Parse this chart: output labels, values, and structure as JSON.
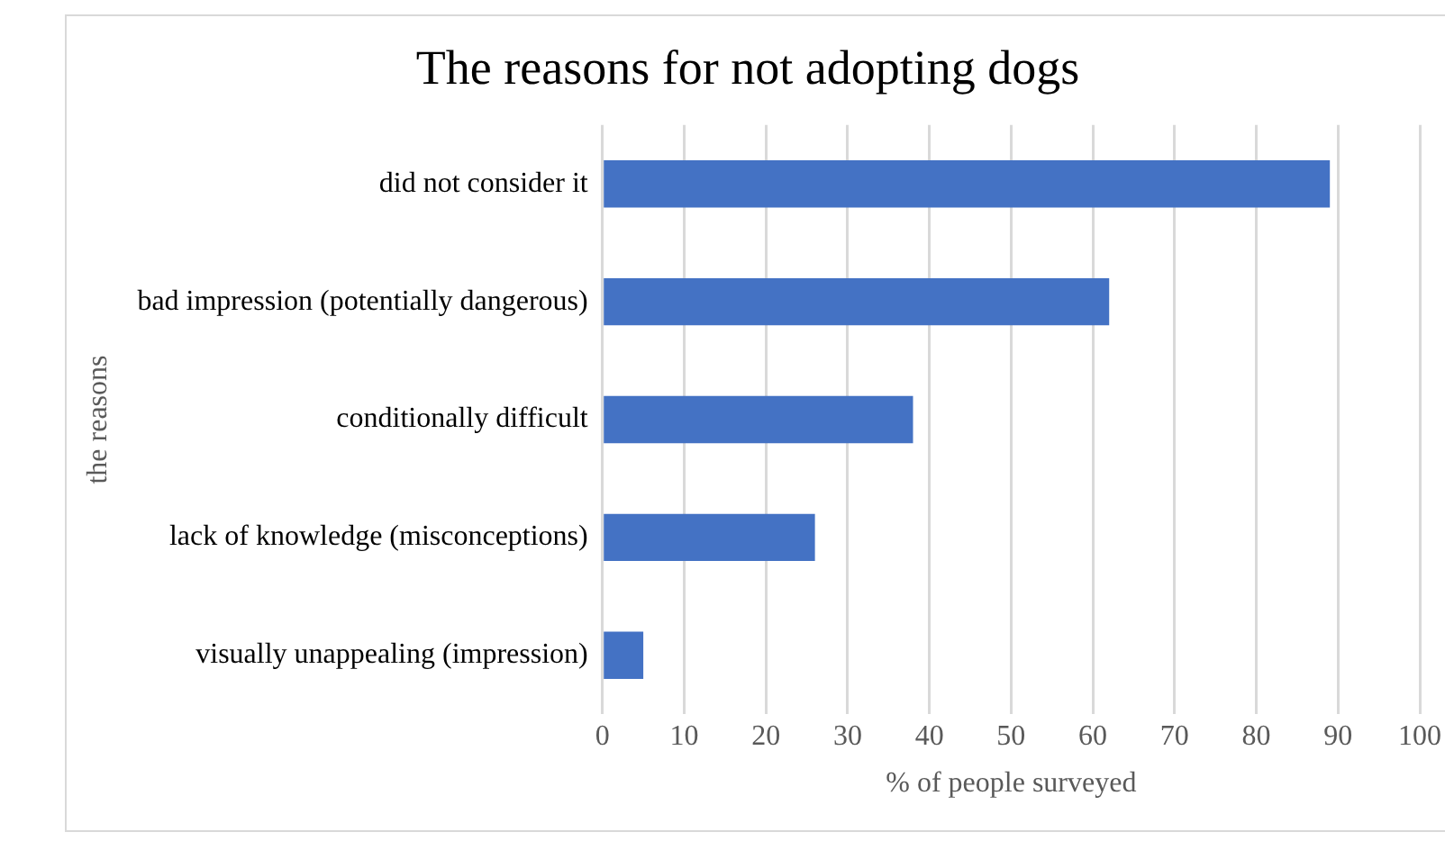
{
  "chart_data": {
    "type": "bar",
    "orientation": "horizontal",
    "title": "The reasons for not adopting dogs",
    "xlabel": "% of people surveyed",
    "ylabel": "the reasons",
    "categories": [
      "did not consider it",
      "bad impression (potentially dangerous)",
      "conditionally difficult",
      "lack of knowledge (misconceptions)",
      "visually unappealing (impression)"
    ],
    "values": [
      89,
      62,
      38,
      26,
      5
    ],
    "color": "#4472c4",
    "xlim": [
      0,
      100
    ],
    "xticks": [
      0,
      10,
      20,
      30,
      40,
      50,
      60,
      70,
      80,
      90,
      100
    ],
    "grid": "x",
    "legend": false
  }
}
